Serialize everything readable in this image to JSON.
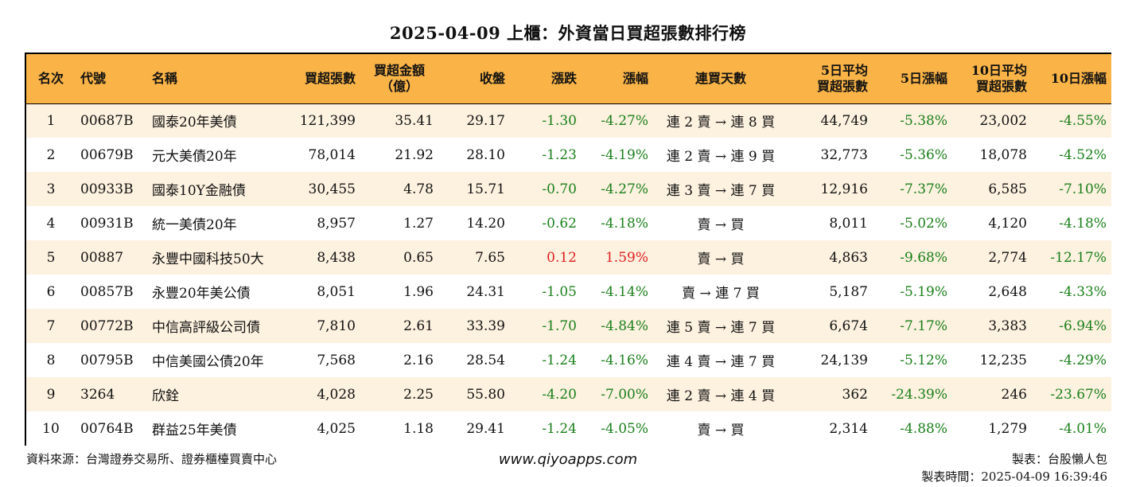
{
  "title": "2025-04-09 上櫃：外資當日買超張數排行榜",
  "headers": {
    "rank": "名次",
    "code": "代號",
    "name": "名稱",
    "net_buy_lots": "買超張數",
    "net_buy_amount_1": "買超金額",
    "net_buy_amount_2": "（億）",
    "close": "收盤",
    "change": "漲跌",
    "change_pct": "漲幅",
    "streak": "連買天數",
    "avg5_1": "5日平均",
    "avg5_2": "買超張數",
    "pct5": "5日漲幅",
    "avg10_1": "10日平均",
    "avg10_2": "買超張數",
    "pct10": "10日漲幅"
  },
  "rows": [
    {
      "rank": "1",
      "code": "00687B",
      "name": "國泰20年美債",
      "lots": "121,399",
      "amount": "35.41",
      "close": "29.17",
      "change": "-1.30",
      "change_pct": "-4.27%",
      "streak": "連 2 賣 → 連 8 買",
      "avg5": "44,749",
      "pct5": "-5.38%",
      "avg10": "23,002",
      "pct10": "-4.55%"
    },
    {
      "rank": "2",
      "code": "00679B",
      "name": "元大美債20年",
      "lots": "78,014",
      "amount": "21.92",
      "close": "28.10",
      "change": "-1.23",
      "change_pct": "-4.19%",
      "streak": "連 2 賣 → 連 9 買",
      "avg5": "32,773",
      "pct5": "-5.36%",
      "avg10": "18,078",
      "pct10": "-4.52%"
    },
    {
      "rank": "3",
      "code": "00933B",
      "name": "國泰10Y金融債",
      "lots": "30,455",
      "amount": "4.78",
      "close": "15.71",
      "change": "-0.70",
      "change_pct": "-4.27%",
      "streak": "連 3 賣 → 連 7 買",
      "avg5": "12,916",
      "pct5": "-7.37%",
      "avg10": "6,585",
      "pct10": "-7.10%"
    },
    {
      "rank": "4",
      "code": "00931B",
      "name": "統一美債20年",
      "lots": "8,957",
      "amount": "1.27",
      "close": "14.20",
      "change": "-0.62",
      "change_pct": "-4.18%",
      "streak": "賣 → 買",
      "avg5": "8,011",
      "pct5": "-5.02%",
      "avg10": "4,120",
      "pct10": "-4.18%"
    },
    {
      "rank": "5",
      "code": "00887",
      "name": "永豐中國科技50大",
      "lots": "8,438",
      "amount": "0.65",
      "close": "7.65",
      "change": "0.12",
      "change_pct": "1.59%",
      "streak": "賣 → 買",
      "avg5": "4,863",
      "pct5": "-9.68%",
      "avg10": "2,774",
      "pct10": "-12.17%"
    },
    {
      "rank": "6",
      "code": "00857B",
      "name": "永豐20年美公債",
      "lots": "8,051",
      "amount": "1.96",
      "close": "24.31",
      "change": "-1.05",
      "change_pct": "-4.14%",
      "streak": "賣 → 連 7 買",
      "avg5": "5,187",
      "pct5": "-5.19%",
      "avg10": "2,648",
      "pct10": "-4.33%"
    },
    {
      "rank": "7",
      "code": "00772B",
      "name": "中信高評級公司債",
      "lots": "7,810",
      "amount": "2.61",
      "close": "33.39",
      "change": "-1.70",
      "change_pct": "-4.84%",
      "streak": "連 5 賣 → 連 7 買",
      "avg5": "6,674",
      "pct5": "-7.17%",
      "avg10": "3,383",
      "pct10": "-6.94%"
    },
    {
      "rank": "8",
      "code": "00795B",
      "name": "中信美國公債20年",
      "lots": "7,568",
      "amount": "2.16",
      "close": "28.54",
      "change": "-1.24",
      "change_pct": "-4.16%",
      "streak": "連 4 賣 → 連 7 買",
      "avg5": "24,139",
      "pct5": "-5.12%",
      "avg10": "12,235",
      "pct10": "-4.29%"
    },
    {
      "rank": "9",
      "code": "3264",
      "name": "欣銓",
      "lots": "4,028",
      "amount": "2.25",
      "close": "55.80",
      "change": "-4.20",
      "change_pct": "-7.00%",
      "streak": "連 2 賣 → 連 4 買",
      "avg5": "362",
      "pct5": "-24.39%",
      "avg10": "246",
      "pct10": "-23.67%"
    },
    {
      "rank": "10",
      "code": "00764B",
      "name": "群益25年美債",
      "lots": "4,025",
      "amount": "1.18",
      "close": "29.41",
      "change": "-1.24",
      "change_pct": "-4.05%",
      "streak": "賣 → 買",
      "avg5": "2,314",
      "pct5": "-4.88%",
      "avg10": "1,279",
      "pct10": "-4.01%"
    }
  ],
  "colors": {
    "header_bg": "#f9b347",
    "stripe_bg": "#fdf1df",
    "negative": "#1a7f1a",
    "positive": "#e0201f"
  },
  "footer": {
    "source": "資料來源：台灣證券交易所、證券櫃檯買賣中心",
    "website": "www.qiyoapps.com",
    "maker": "製表：台股懶人包",
    "made_time": "製表時間：2025-04-09 16:39:46"
  }
}
